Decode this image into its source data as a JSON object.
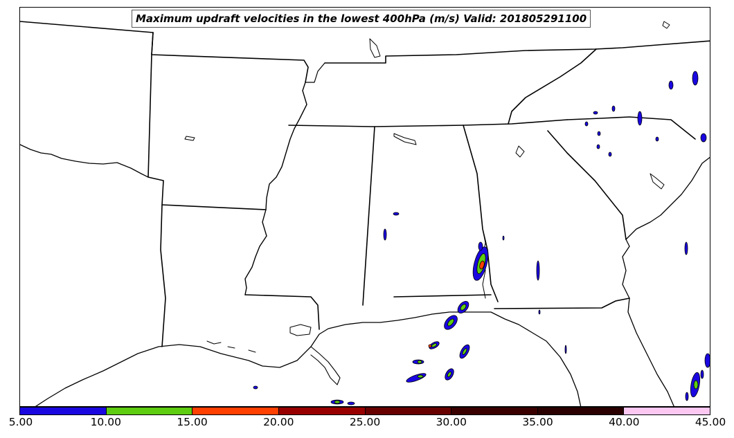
{
  "title": "Maximum updraft velocities in the lowest 400hPa (m/s) Valid: 201805291100",
  "colorbar": {
    "labels": [
      "5.00",
      "10.00",
      "15.00",
      "20.00",
      "25.00",
      "30.00",
      "35.00",
      "40.00",
      "45.00"
    ],
    "colors": [
      "#1a07e0",
      "#5ecc10",
      "#ff4000",
      "#980000",
      "#680000",
      "#3a0000",
      "#2a0000",
      "#fcc8f2"
    ],
    "bins": [
      {
        "min": 5,
        "max": 10
      },
      {
        "min": 10,
        "max": 15
      },
      {
        "min": 15,
        "max": 20
      },
      {
        "min": 20,
        "max": 25
      },
      {
        "min": 25,
        "max": 30
      },
      {
        "min": 30,
        "max": 35
      },
      {
        "min": 35,
        "max": 40
      },
      {
        "min": 40,
        "max": 45
      }
    ]
  },
  "map": {
    "region": "Southeastern United States and northern Gulf of Mexico",
    "features": [
      "coastlines",
      "state-borders",
      "updraft-contours"
    ]
  }
}
